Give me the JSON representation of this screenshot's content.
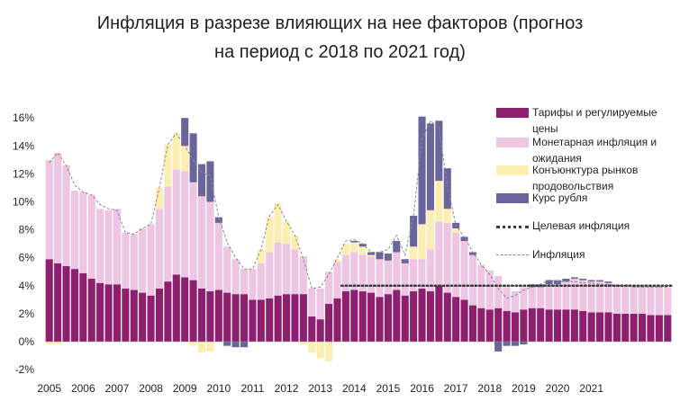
{
  "title_line1": "Инфляция в разрезе влияющих на нее факторов (прогноз",
  "title_line2": "на период с 2018 по 2021 год)",
  "chart_data": {
    "type": "bar",
    "stacked": true,
    "title": "Инфляция в разрезе влияющих на нее факторов (прогноз на период с 2018 по 2021 год)",
    "y_unit": "%",
    "ylim": [
      -2,
      16.5
    ],
    "y_ticks": [
      -2,
      0,
      2,
      4,
      6,
      8,
      10,
      12,
      14,
      16
    ],
    "y_tick_labels": [
      "-2%",
      "0%",
      "2%",
      "4%",
      "6%",
      "8%",
      "10%",
      "12%",
      "14%",
      "16%"
    ],
    "x_tick_labels": [
      "2005",
      "2006",
      "2007",
      "2008",
      "2009",
      "2010",
      "2011",
      "2012",
      "2013",
      "2014",
      "2015",
      "2016",
      "2017",
      "2018",
      "2019",
      "2020",
      "2021"
    ],
    "legend_position": "right",
    "periods_per_year": 4,
    "series": [
      {
        "name": "Тарифы и регулируемые цены",
        "color": "#8e1f6e",
        "values": [
          5.9,
          5.6,
          5.4,
          5.2,
          4.9,
          4.5,
          4.2,
          4.1,
          4.1,
          3.8,
          3.7,
          3.5,
          3.3,
          3.8,
          4.3,
          4.8,
          4.6,
          4.4,
          3.8,
          3.6,
          3.7,
          3.5,
          3.4,
          3.4,
          3.0,
          3.0,
          3.1,
          3.3,
          3.4,
          3.4,
          3.4,
          1.8,
          1.6,
          2.7,
          3.1,
          3.6,
          3.7,
          3.6,
          3.5,
          3.2,
          3.4,
          3.7,
          3.3,
          3.6,
          3.8,
          3.6,
          4.0,
          3.5,
          3.2,
          3.0,
          2.6,
          2.4,
          2.3,
          2.4,
          2.2,
          2.1,
          2.3,
          2.4,
          2.4,
          2.3,
          2.3,
          2.3,
          2.3,
          2.2,
          2.1,
          2.1,
          2.1,
          2.0,
          2.0,
          2.0,
          2.0,
          1.9,
          1.9,
          1.9
        ]
      },
      {
        "name": "Монетарная инфляция и ожидания",
        "color": "#eec5e2",
        "values": [
          7.1,
          7.9,
          7.2,
          5.6,
          5.8,
          6.0,
          5.3,
          5.3,
          5.4,
          4.0,
          4.0,
          4.6,
          5.1,
          5.7,
          6.8,
          7.5,
          7.6,
          7.0,
          6.6,
          6.4,
          4.8,
          3.3,
          2.5,
          1.8,
          2.2,
          2.6,
          3.3,
          3.8,
          3.6,
          3.2,
          2.7,
          2.0,
          2.2,
          2.3,
          2.6,
          2.6,
          2.7,
          2.6,
          2.6,
          2.7,
          2.4,
          2.7,
          2.3,
          2.3,
          2.1,
          3.0,
          4.6,
          5.0,
          4.6,
          4.2,
          3.6,
          3.1,
          2.8,
          2.3,
          1.7,
          1.5,
          1.6,
          1.5,
          1.5,
          1.8,
          1.8,
          2.0,
          2.2,
          2.2,
          2.2,
          2.2,
          2.1,
          2.1,
          2.1,
          2.0,
          2.0,
          2.1,
          2.1,
          2.0
        ]
      },
      {
        "name": "Конъюнктура рынков продовольствия",
        "color": "#fceeb1",
        "values": [
          -0.2,
          -0.2,
          0,
          0,
          0,
          0,
          0,
          0,
          0,
          0,
          0,
          0,
          0,
          1.5,
          3.0,
          2.6,
          1.8,
          -0.3,
          -0.8,
          -0.7,
          0,
          0,
          0,
          0,
          0,
          1.0,
          2.5,
          2.8,
          1.6,
          1.0,
          -0.2,
          -0.8,
          -1.2,
          -1.4,
          0.2,
          0.8,
          0.7,
          0.6,
          0.1,
          0,
          0,
          0,
          0,
          0.9,
          2.5,
          2.8,
          2.9,
          1.0,
          0.3,
          0,
          0,
          0,
          0,
          0,
          0,
          0,
          0,
          0,
          0,
          0,
          0,
          0,
          0,
          0,
          0,
          0,
          0,
          0,
          0,
          0,
          0,
          0,
          0,
          0
        ]
      },
      {
        "name": "Курс рубля",
        "color": "#6a649c",
        "values": [
          0,
          0,
          0,
          0,
          0,
          0,
          0,
          0,
          0,
          0,
          0,
          0,
          0,
          0,
          0,
          0,
          2.0,
          3.5,
          2.3,
          2.9,
          0.4,
          -0.3,
          -0.4,
          -0.4,
          0,
          0,
          0,
          0,
          0,
          0,
          0,
          0,
          0,
          0,
          0,
          0,
          0.1,
          0.2,
          0.2,
          0.5,
          0.5,
          0.8,
          0.3,
          2.2,
          7.7,
          6.2,
          4.3,
          2.9,
          0.4,
          0.3,
          0.2,
          0,
          0,
          -0.7,
          -0.3,
          -0.3,
          -0.2,
          0.2,
          0.2,
          0.3,
          0.3,
          0.2,
          0.1,
          0.1,
          0.1,
          0.1,
          0.1,
          0,
          0,
          0,
          0,
          0,
          0,
          0
        ]
      },
      {
        "name": "Целевая инфляция",
        "type": "line",
        "style": "dotted",
        "color": "#3a3a3a",
        "from_period": 35,
        "value": 4.0
      },
      {
        "name": "Инфляция",
        "type": "line",
        "style": "dashed",
        "color": "#8a8a8a",
        "values": [
          12.8,
          13.5,
          12.6,
          11.2,
          10.7,
          10.5,
          9.8,
          9.5,
          9.4,
          7.8,
          7.7,
          8.1,
          8.4,
          11.0,
          14.1,
          14.9,
          14.0,
          13.0,
          12.1,
          11.9,
          8.9,
          7.1,
          6.0,
          5.2,
          5.2,
          6.6,
          9.0,
          9.8,
          8.6,
          7.6,
          5.9,
          3.8,
          3.9,
          4.8,
          6.0,
          7.2,
          7.3,
          7.0,
          6.4,
          6.4,
          6.6,
          7.6,
          6.2,
          9.0,
          14.5,
          15.8,
          15.3,
          11.2,
          8.3,
          7.5,
          6.4,
          5.5,
          4.8,
          3.8,
          3.1,
          3.3,
          3.7,
          3.9,
          4.1,
          4.4,
          4.3,
          4.3,
          4.3,
          4.2,
          4.2,
          4.1,
          4.1,
          4.0,
          4.0,
          3.9,
          3.9,
          3.9,
          3.9,
          3.9
        ]
      }
    ],
    "legend_labels": [
      "Тарифы и регулируемые цены",
      "Монетарная инфляция и ожидания",
      "Конъюнктура рынков продовольствия",
      "Курс рубля",
      "Целевая инфляция",
      "Инфляция"
    ]
  }
}
